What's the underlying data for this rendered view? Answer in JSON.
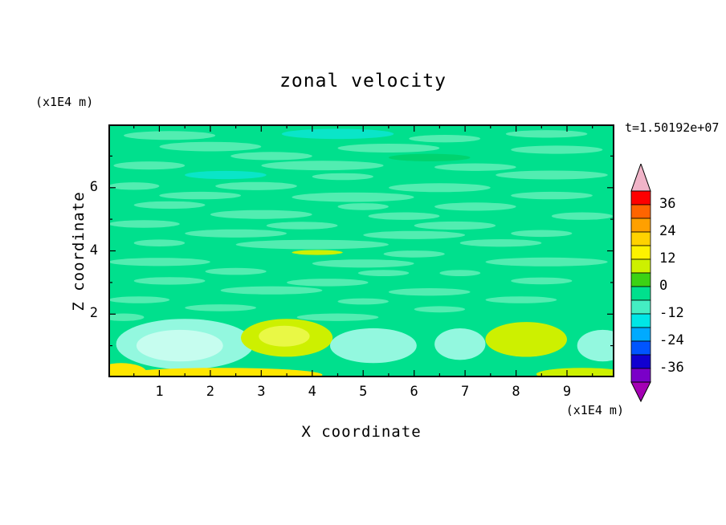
{
  "header": {
    "title": "zonal velocity",
    "time_label": "t=1.50192e+07"
  },
  "axes": {
    "x": {
      "label": "X coordinate",
      "unit_label": "(x1E4 m)"
    },
    "z": {
      "label": "Z coordinate",
      "unit_label": "(x1E4 m)"
    }
  },
  "chart_data": {
    "type": "heatmap",
    "subtype": "filled_contour",
    "title": "zonal velocity",
    "xlabel": "X coordinate",
    "ylabel": "Z coordinate",
    "x_unit": "(x1E4 m)",
    "y_unit": "(x1E4 m)",
    "time_annotation": "t=1.50192e+07",
    "xlim": [
      0,
      9.93
    ],
    "zlim": [
      0,
      8
    ],
    "x_ticks": [
      1,
      2,
      3,
      4,
      5,
      6,
      7,
      8,
      9
    ],
    "z_ticks": [
      2,
      4,
      6
    ],
    "contour_level_step": 6,
    "labeled_levels": [
      36,
      24,
      12,
      0,
      -12,
      -24,
      -36
    ],
    "field_summary": "Zonal velocity field dominated by the 0 to -6 band (spring green) with thin horizontal lighter-green streaks (-6 to -12) through the interior; below z=2 stronger anomalies appear: pale-cyan lows (about -12 to -18) near x=1.5, 5.2, 6.9 and 9.7, yellow-green highs (about +6 to +12) near x=3.5 and 8.2, and a thin yellow (+12 to +18) band along the bottom boundary for x<4.2 and near x=9.3",
    "colorbar": {
      "orientation": "vertical",
      "labels": [
        36,
        24,
        12,
        0,
        -12,
        -24,
        -36
      ],
      "segment_values_top_to_bottom": [
        [
          42,
          36
        ],
        [
          36,
          30
        ],
        [
          30,
          24
        ],
        [
          24,
          18
        ],
        [
          18,
          12
        ],
        [
          12,
          6
        ],
        [
          6,
          0
        ],
        [
          0,
          -6
        ],
        [
          -6,
          -12
        ],
        [
          -12,
          -18
        ],
        [
          -18,
          -24
        ],
        [
          -24,
          -30
        ],
        [
          -30,
          -36
        ],
        [
          -36,
          -42
        ]
      ],
      "segment_colors_top_to_bottom": [
        "#fe0000",
        "#ff6400",
        "#ffa000",
        "#ffd200",
        "#fdf200",
        "#cdf000",
        "#3cd214",
        "#00e08d",
        "#44eec3",
        "#00e6e6",
        "#00aaff",
        "#0055ff",
        "#1100d0",
        "#7a00c8"
      ],
      "arrow_top_color": "#f0b4c8",
      "arrow_bottom_color": "#a400b4"
    },
    "palette": {
      "base": "#00e08d",
      "light": "#52edb1",
      "aqua": "#0ae5c8",
      "dark": "#00d36f",
      "light_cyan": "#93f8df",
      "pale_cyan": "#c6fdef",
      "yellow_green": "#cdf000",
      "yellow_green_core": "#e9f845",
      "yellow": "#ffe600"
    },
    "feature_format": "[x_center, z_center, x_radius, z_radius, color_key (default 'light')]",
    "features": [
      [
        1.2,
        7.65,
        0.9,
        0.14
      ],
      [
        4.5,
        7.7,
        1.1,
        0.16,
        "aqua"
      ],
      [
        6.6,
        7.55,
        0.7,
        0.12
      ],
      [
        8.6,
        7.7,
        0.8,
        0.12
      ],
      [
        2.0,
        7.3,
        1.0,
        0.15
      ],
      [
        5.5,
        7.25,
        1.0,
        0.14
      ],
      [
        8.8,
        7.2,
        0.9,
        0.13
      ],
      [
        3.2,
        7.0,
        0.8,
        0.13
      ],
      [
        6.3,
        6.95,
        0.8,
        0.12,
        "dark"
      ],
      [
        0.8,
        6.7,
        0.7,
        0.13
      ],
      [
        4.2,
        6.7,
        1.2,
        0.15
      ],
      [
        7.2,
        6.65,
        0.8,
        0.12
      ],
      [
        2.3,
        6.4,
        0.8,
        0.13,
        "aqua"
      ],
      [
        4.6,
        6.35,
        0.6,
        0.11
      ],
      [
        8.7,
        6.4,
        1.1,
        0.14
      ],
      [
        0.5,
        6.05,
        0.5,
        0.12
      ],
      [
        2.9,
        6.05,
        0.8,
        0.13
      ],
      [
        6.5,
        6.0,
        1.0,
        0.14
      ],
      [
        1.8,
        5.75,
        0.8,
        0.12
      ],
      [
        4.8,
        5.7,
        1.2,
        0.15
      ],
      [
        8.7,
        5.75,
        0.8,
        0.12
      ],
      [
        1.2,
        5.45,
        0.7,
        0.12
      ],
      [
        5.0,
        5.4,
        0.5,
        0.11
      ],
      [
        7.2,
        5.4,
        0.8,
        0.13
      ],
      [
        3.0,
        5.15,
        1.0,
        0.14
      ],
      [
        5.8,
        5.1,
        0.7,
        0.12
      ],
      [
        9.3,
        5.1,
        0.6,
        0.12
      ],
      [
        0.7,
        4.85,
        0.7,
        0.12
      ],
      [
        3.8,
        4.8,
        0.7,
        0.12
      ],
      [
        6.8,
        4.8,
        0.8,
        0.13
      ],
      [
        2.5,
        4.55,
        1.0,
        0.13
      ],
      [
        6.0,
        4.5,
        1.0,
        0.13
      ],
      [
        8.5,
        4.55,
        0.6,
        0.11
      ],
      [
        1.0,
        4.25,
        0.5,
        0.11
      ],
      [
        4.0,
        4.2,
        1.5,
        0.15
      ],
      [
        7.7,
        4.25,
        0.8,
        0.12
      ],
      [
        4.1,
        3.95,
        0.5,
        0.08,
        "yellow_green"
      ],
      [
        6.0,
        3.9,
        0.6,
        0.11
      ],
      [
        1.0,
        3.65,
        1.0,
        0.13
      ],
      [
        5.0,
        3.6,
        1.0,
        0.13
      ],
      [
        8.6,
        3.65,
        1.2,
        0.14
      ],
      [
        2.5,
        3.35,
        0.6,
        0.11
      ],
      [
        5.4,
        3.3,
        0.5,
        0.1
      ],
      [
        6.9,
        3.3,
        0.4,
        0.1
      ],
      [
        1.2,
        3.05,
        0.7,
        0.12
      ],
      [
        4.3,
        3.0,
        0.8,
        0.12
      ],
      [
        8.5,
        3.05,
        0.6,
        0.11
      ],
      [
        3.2,
        2.75,
        1.0,
        0.13
      ],
      [
        6.3,
        2.7,
        0.8,
        0.12
      ],
      [
        0.6,
        2.45,
        0.6,
        0.11
      ],
      [
        5.0,
        2.4,
        0.5,
        0.1
      ],
      [
        8.1,
        2.45,
        0.7,
        0.11
      ],
      [
        2.2,
        2.2,
        0.7,
        0.11
      ],
      [
        6.5,
        2.15,
        0.5,
        0.1
      ],
      [
        4.5,
        1.9,
        0.8,
        0.12
      ],
      [
        0.3,
        1.9,
        0.4,
        0.12
      ],
      [
        1.5,
        1.05,
        1.35,
        0.8,
        "light_cyan"
      ],
      [
        1.4,
        1.0,
        0.85,
        0.5,
        "pale_cyan"
      ],
      [
        3.5,
        1.25,
        0.9,
        0.6,
        "yellow_green"
      ],
      [
        3.45,
        1.3,
        0.5,
        0.33,
        "yellow_green_core"
      ],
      [
        5.2,
        1.0,
        0.85,
        0.55,
        "light_cyan"
      ],
      [
        6.9,
        1.05,
        0.5,
        0.5,
        "light_cyan"
      ],
      [
        8.2,
        1.2,
        0.8,
        0.55,
        "yellow_green"
      ],
      [
        9.7,
        1.0,
        0.5,
        0.5,
        "light_cyan"
      ],
      [
        2.2,
        0.08,
        2.0,
        0.22,
        "yellow"
      ],
      [
        0.25,
        0.15,
        0.5,
        0.3,
        "yellow"
      ],
      [
        9.3,
        0.1,
        0.9,
        0.2,
        "yellow_green"
      ]
    ]
  }
}
